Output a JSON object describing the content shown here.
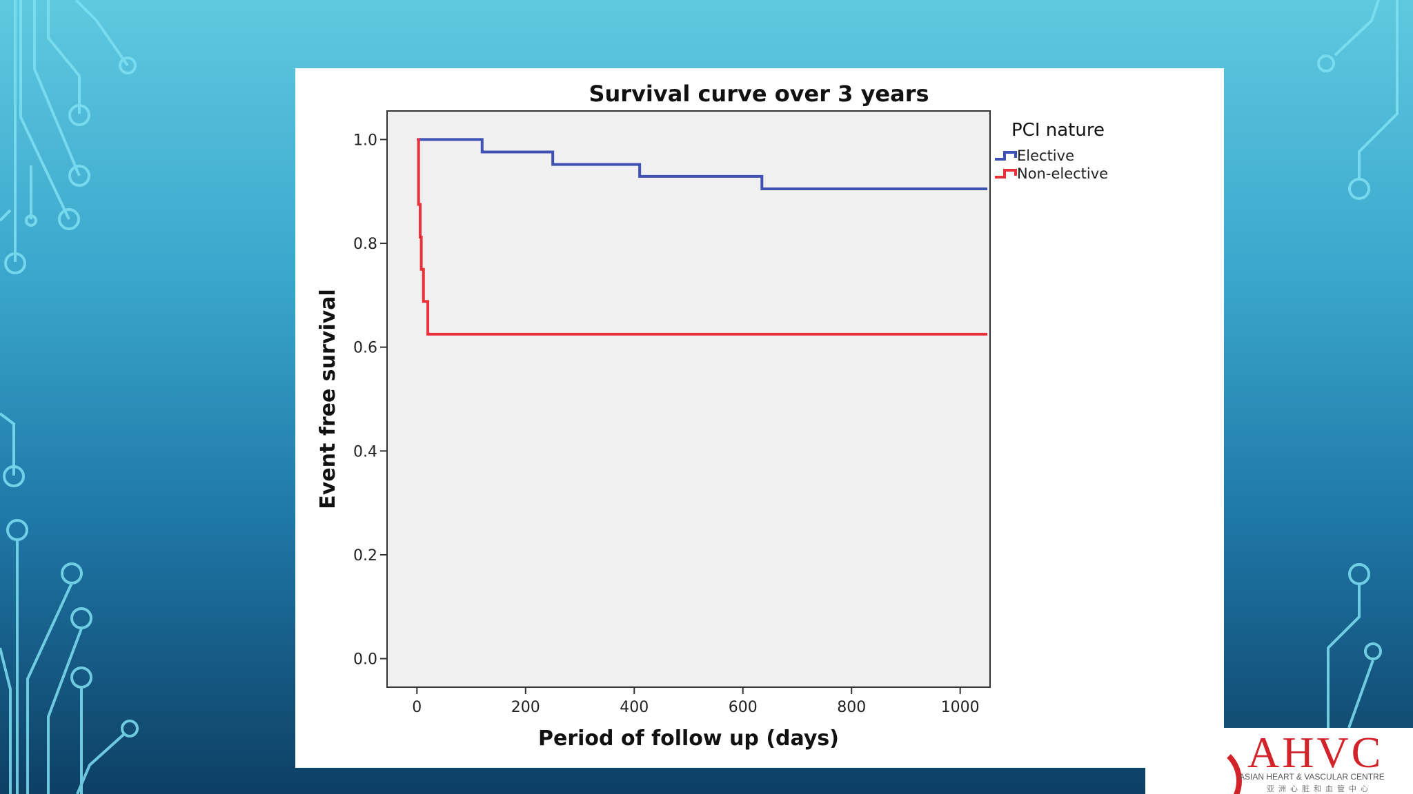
{
  "chart_data": {
    "type": "line",
    "step": true,
    "title": "Survival curve over 3 years",
    "xlabel": "Period of follow up (days)",
    "ylabel": "Event free survival",
    "xlim": [
      -55,
      1055
    ],
    "ylim": [
      -0.055,
      1.055
    ],
    "x_ticks": [
      0,
      200,
      400,
      600,
      800,
      1000
    ],
    "y_ticks": [
      0.0,
      0.2,
      0.4,
      0.6,
      0.8,
      1.0
    ],
    "x_tick_labels": [
      "0",
      "200",
      "400",
      "600",
      "800",
      "1000"
    ],
    "y_tick_labels": [
      "0.0",
      "0.2",
      "0.4",
      "0.6",
      "0.8",
      "1.0"
    ],
    "grid": false,
    "plot_background": "#f0f0f0",
    "legend": {
      "title": "PCI nature",
      "placement": "right"
    },
    "series": [
      {
        "name": "Elective",
        "color": "#3f51b5",
        "x": [
          0,
          120,
          250,
          410,
          635,
          1050
        ],
        "y": [
          1.0,
          0.976,
          0.952,
          0.929,
          0.905,
          0.905
        ]
      },
      {
        "name": "Non-elective",
        "color": "#e8313a",
        "x": [
          0,
          3,
          6,
          8,
          12,
          20,
          1050
        ],
        "y": [
          1.0,
          0.875,
          0.812,
          0.75,
          0.688,
          0.625,
          0.625
        ]
      }
    ]
  },
  "logo": {
    "brand": "AHVC",
    "subtitle": "ASIAN HEART & VASCULAR CENTRE",
    "subtitle_cn": "亚洲心脏和血管中心",
    "color": "#d2232a"
  }
}
